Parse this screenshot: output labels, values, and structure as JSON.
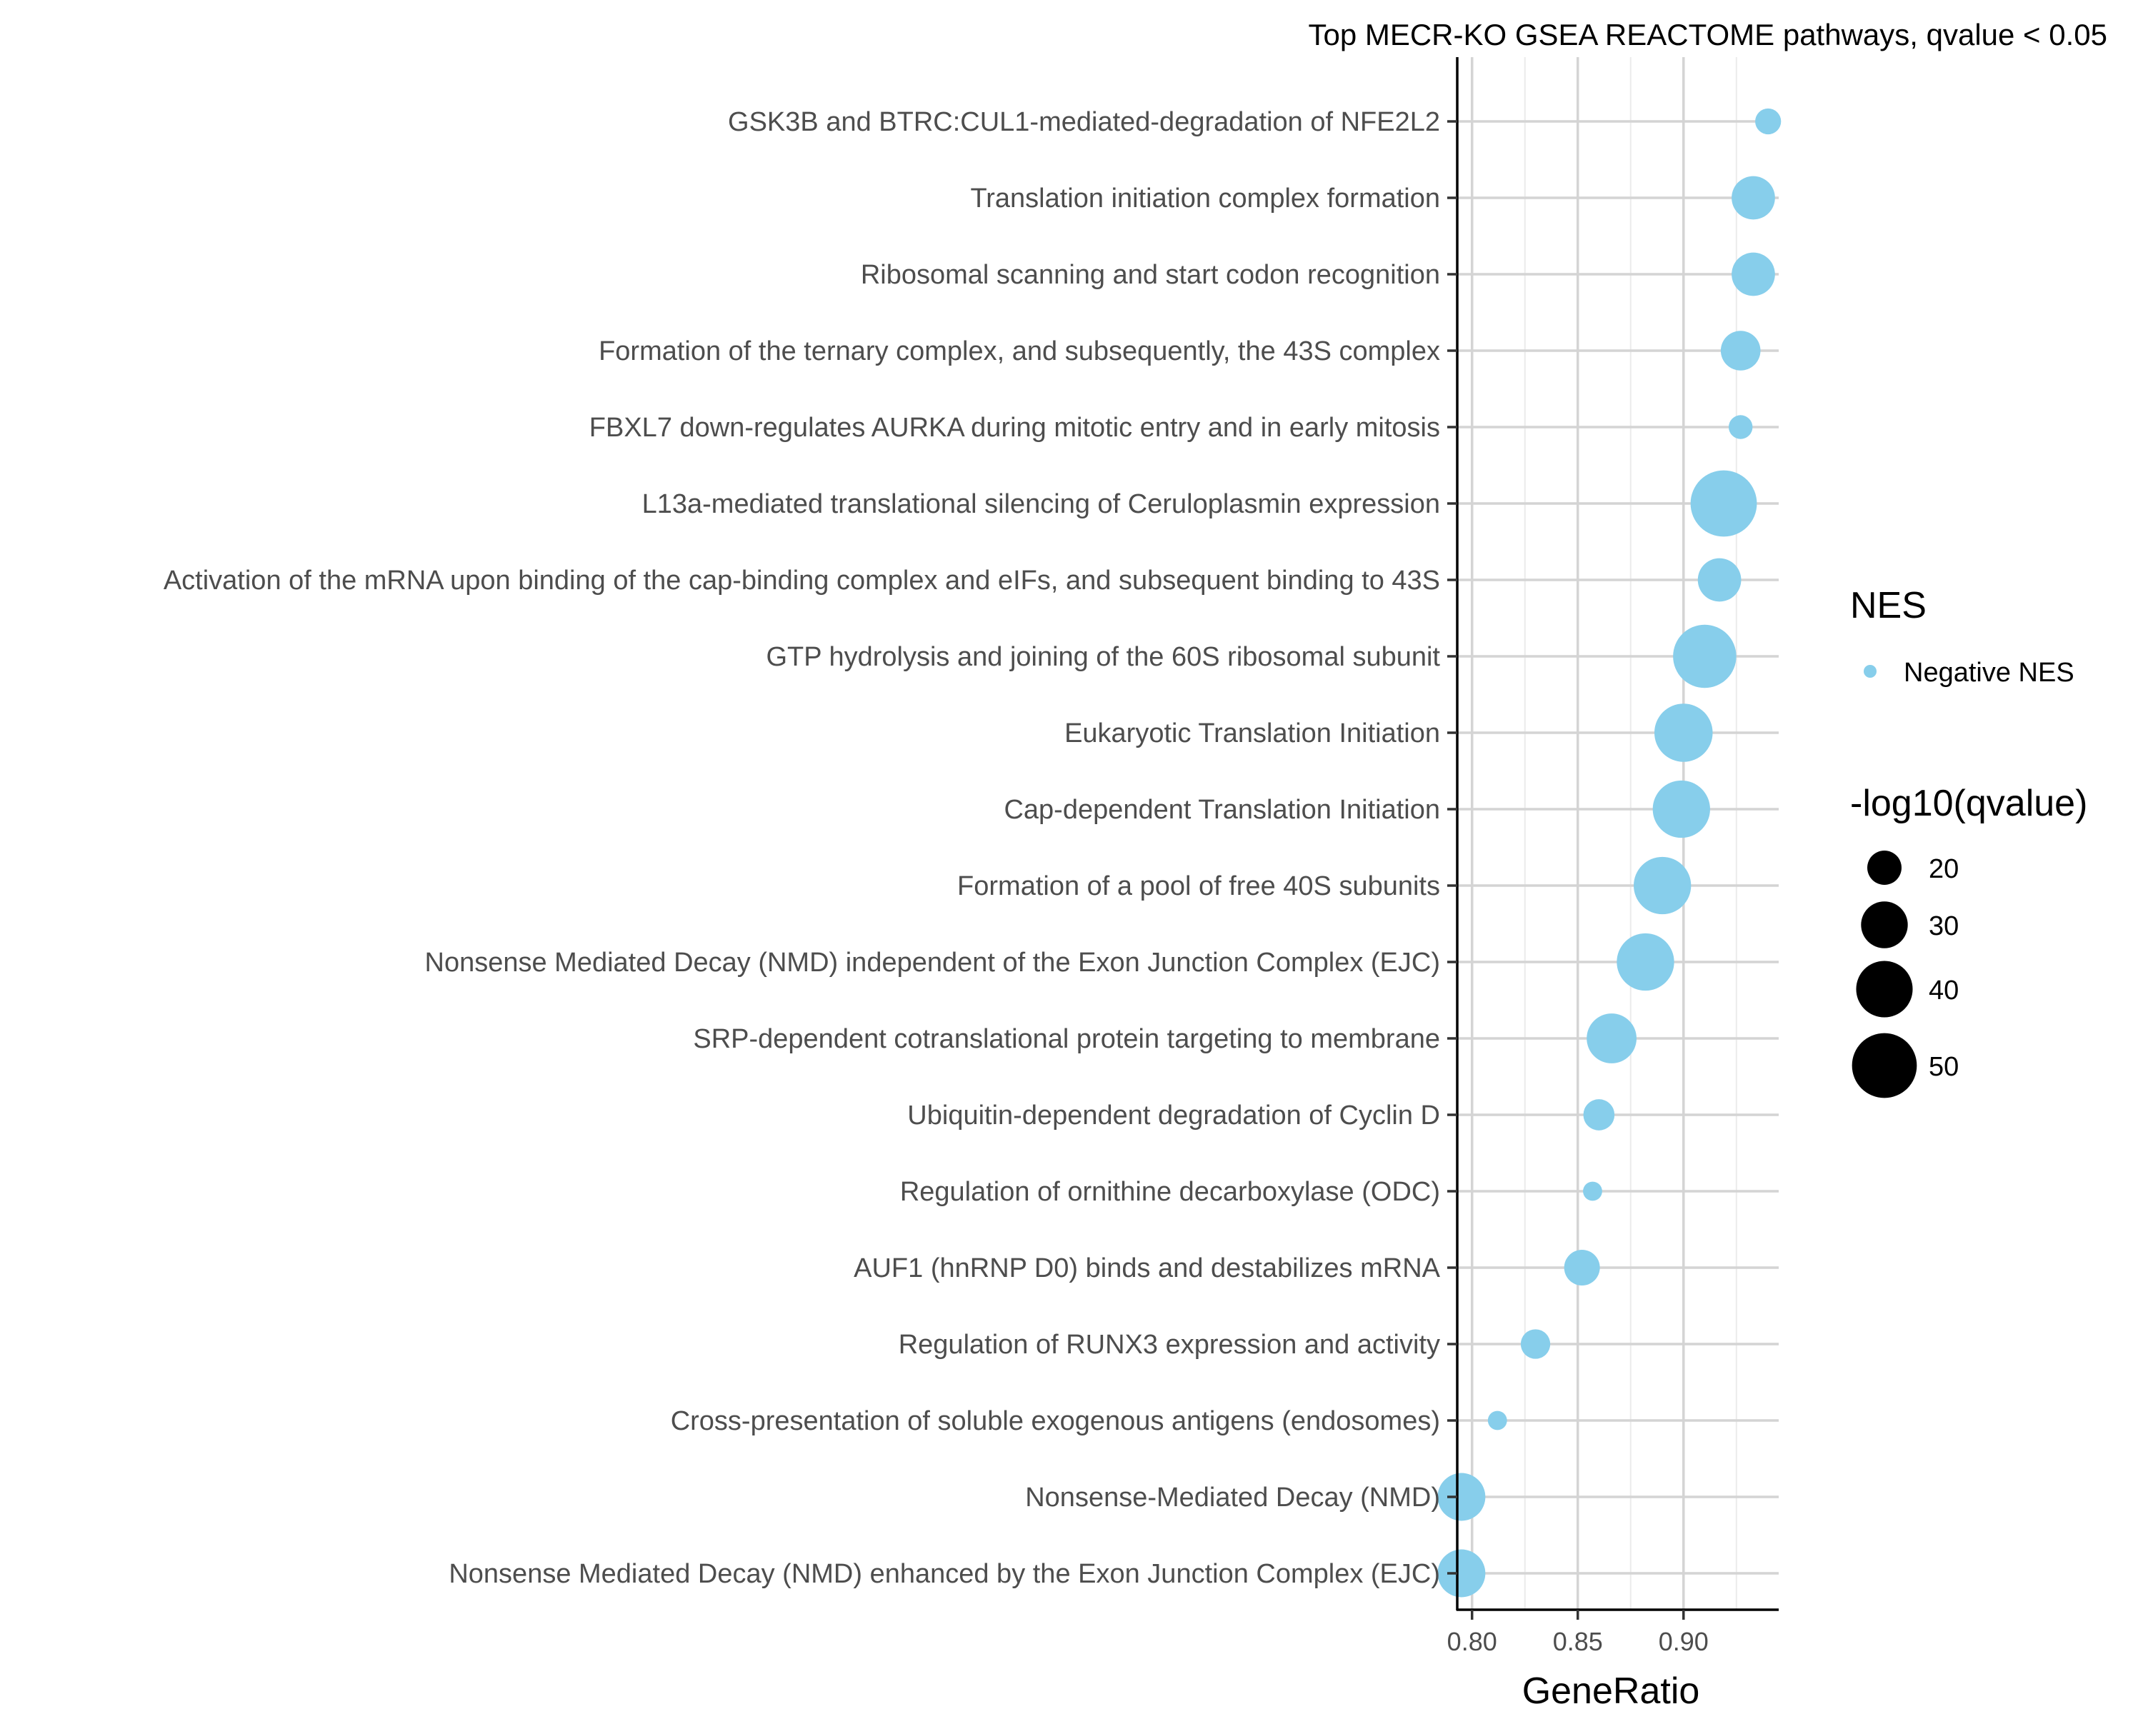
{
  "chart_data": {
    "type": "scatter",
    "title": "Top MECR-KO GSEA REACTOME pathways, qvalue < 0.05",
    "xlabel": "GeneRatio",
    "ylabel": "",
    "xlim": [
      0.793,
      0.945
    ],
    "xticks": [
      0.8,
      0.85,
      0.9
    ],
    "xtick_labels": [
      "0.80",
      "0.85",
      "0.90"
    ],
    "grid": true,
    "point_color": "#87ceeb",
    "categories": [
      "GSK3B and BTRC:CUL1-mediated-degradation of NFE2L2",
      "Translation initiation complex formation",
      "Ribosomal scanning and start codon recognition",
      "Formation of the ternary complex, and subsequently, the 43S complex",
      "FBXL7 down-regulates AURKA during mitotic entry and in early mitosis",
      "L13a-mediated translational silencing of Ceruloplasmin expression",
      "Activation of the mRNA upon binding of the cap-binding complex and eIFs, and subsequent binding to 43S",
      "GTP hydrolysis and joining of the 60S ribosomal subunit",
      "Eukaryotic Translation Initiation",
      "Cap-dependent Translation Initiation",
      "Formation of a pool of free 40S subunits",
      "Nonsense Mediated Decay (NMD) independent of the Exon Junction Complex (EJC)",
      "SRP-dependent cotranslational protein targeting to membrane",
      "Ubiquitin-dependent degradation of Cyclin D",
      "Regulation of ornithine decarboxylase (ODC)",
      "AUF1 (hnRNP D0) binds and destabilizes mRNA",
      "Regulation of RUNX3 expression and activity",
      "Cross-presentation of soluble exogenous antigens (endosomes)",
      "Nonsense-Mediated Decay (NMD)",
      "Nonsense Mediated Decay (NMD) enhanced by the Exon Junction Complex (EJC)"
    ],
    "series": [
      {
        "name": "Negative NES",
        "x": [
          0.94,
          0.933,
          0.933,
          0.927,
          0.927,
          0.919,
          0.917,
          0.91,
          0.9,
          0.899,
          0.89,
          0.882,
          0.866,
          0.86,
          0.857,
          0.852,
          0.83,
          0.812,
          0.795,
          0.795
        ],
        "size": [
          15,
          27,
          27,
          24,
          14,
          52,
          27,
          48,
          42,
          41,
          41,
          41,
          33,
          18,
          12,
          21,
          17,
          12,
          31,
          31
        ]
      }
    ],
    "legend": {
      "color_title": "NES",
      "color_entries": [
        {
          "label": "Negative NES",
          "color": "#87ceeb"
        }
      ],
      "size_title": "-log10(qvalue)",
      "size_entries": [
        20,
        30,
        40,
        50
      ],
      "placement": "right"
    }
  }
}
